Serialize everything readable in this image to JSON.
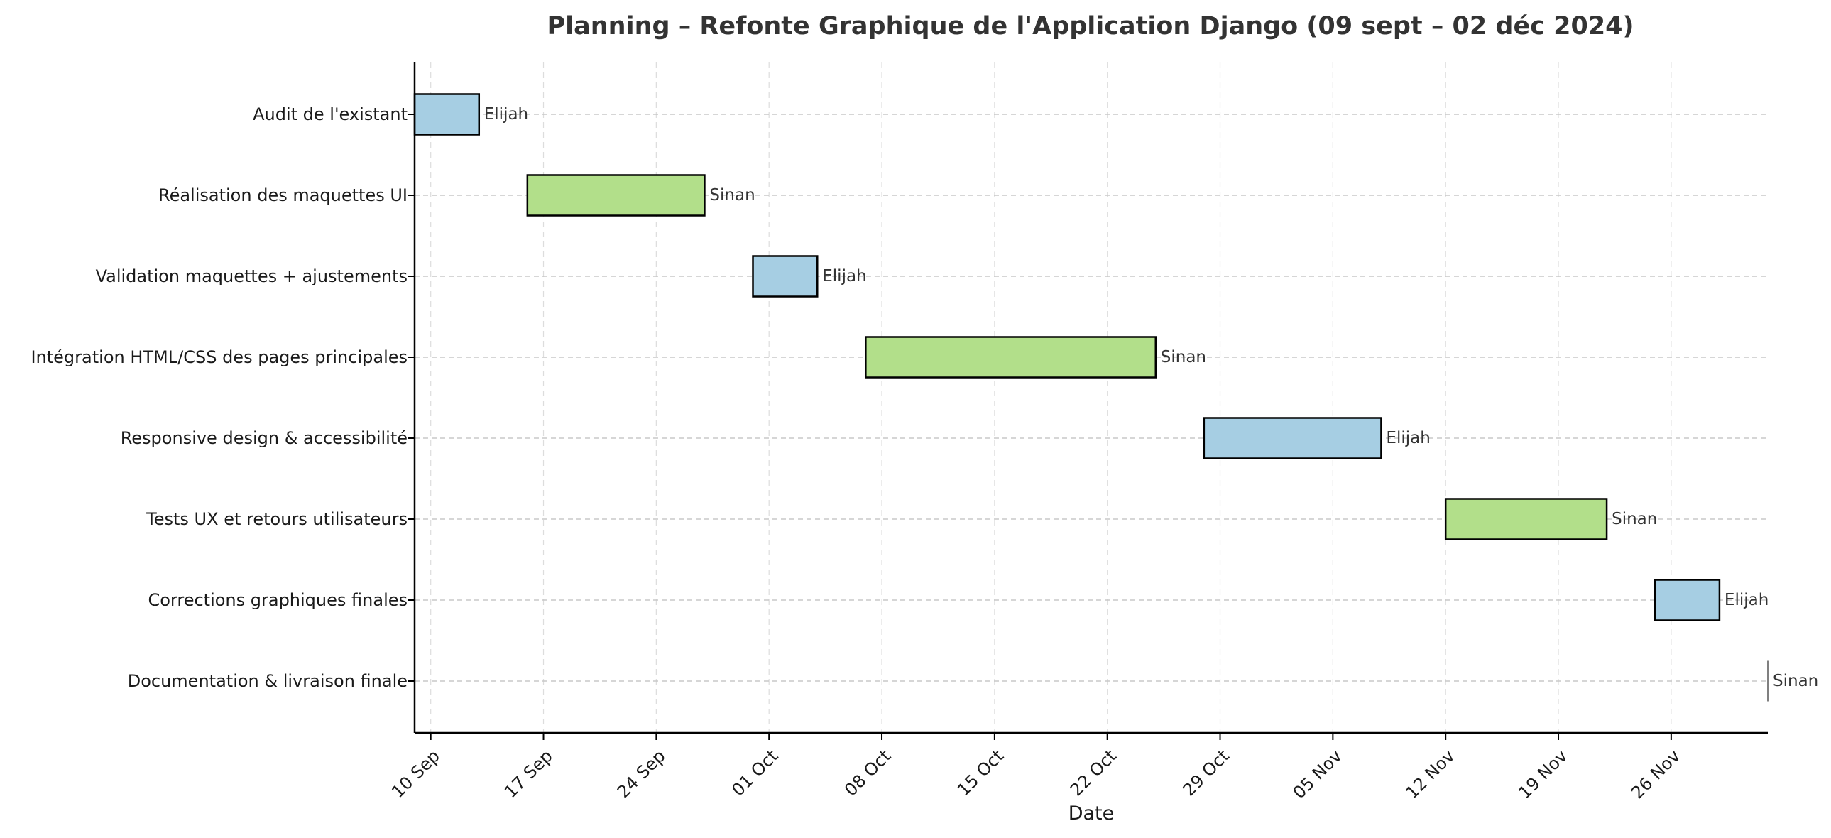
{
  "chart_data": {
    "type": "gantt",
    "title": "Planning – Refonte Graphique de l'Application Django (09 sept – 02 déc 2024)",
    "xlabel": "Date",
    "ylabel": "",
    "x_range": [
      "2024-09-09",
      "2024-12-02"
    ],
    "grid": true,
    "x_ticks": [
      {
        "date": "2024-09-10",
        "label": "10 Sep"
      },
      {
        "date": "2024-09-17",
        "label": "17 Sep"
      },
      {
        "date": "2024-09-24",
        "label": "24 Sep"
      },
      {
        "date": "2024-10-01",
        "label": "01 Oct"
      },
      {
        "date": "2024-10-08",
        "label": "08 Oct"
      },
      {
        "date": "2024-10-15",
        "label": "15 Oct"
      },
      {
        "date": "2024-10-22",
        "label": "22 Oct"
      },
      {
        "date": "2024-10-29",
        "label": "29 Oct"
      },
      {
        "date": "2024-11-05",
        "label": "05 Nov"
      },
      {
        "date": "2024-11-12",
        "label": "12 Nov"
      },
      {
        "date": "2024-11-19",
        "label": "19 Nov"
      },
      {
        "date": "2024-11-26",
        "label": "26 Nov"
      }
    ],
    "colors": {
      "Elijah": "#a6cee3",
      "Sinan": "#b2df8a"
    },
    "tasks": [
      {
        "task": "Audit de l'existant",
        "start": "2024-09-09",
        "end": "2024-09-13",
        "owner": "Elijah"
      },
      {
        "task": "Réalisation des maquettes UI",
        "start": "2024-09-16",
        "end": "2024-09-27",
        "owner": "Sinan"
      },
      {
        "task": "Validation maquettes + ajustements",
        "start": "2024-09-30",
        "end": "2024-10-04",
        "owner": "Elijah"
      },
      {
        "task": "Intégration HTML/CSS des pages principales",
        "start": "2024-10-07",
        "end": "2024-10-25",
        "owner": "Sinan"
      },
      {
        "task": "Responsive design & accessibilité",
        "start": "2024-10-28",
        "end": "2024-11-08",
        "owner": "Elijah"
      },
      {
        "task": "Tests UX et retours utilisateurs",
        "start": "2024-11-12",
        "end": "2024-11-22",
        "owner": "Sinan"
      },
      {
        "task": "Corrections graphiques finales",
        "start": "2024-11-25",
        "end": "2024-11-29",
        "owner": "Elijah"
      },
      {
        "task": "Documentation & livraison finale",
        "start": "2024-12-02",
        "end": "2024-12-02",
        "owner": "Sinan"
      }
    ]
  }
}
